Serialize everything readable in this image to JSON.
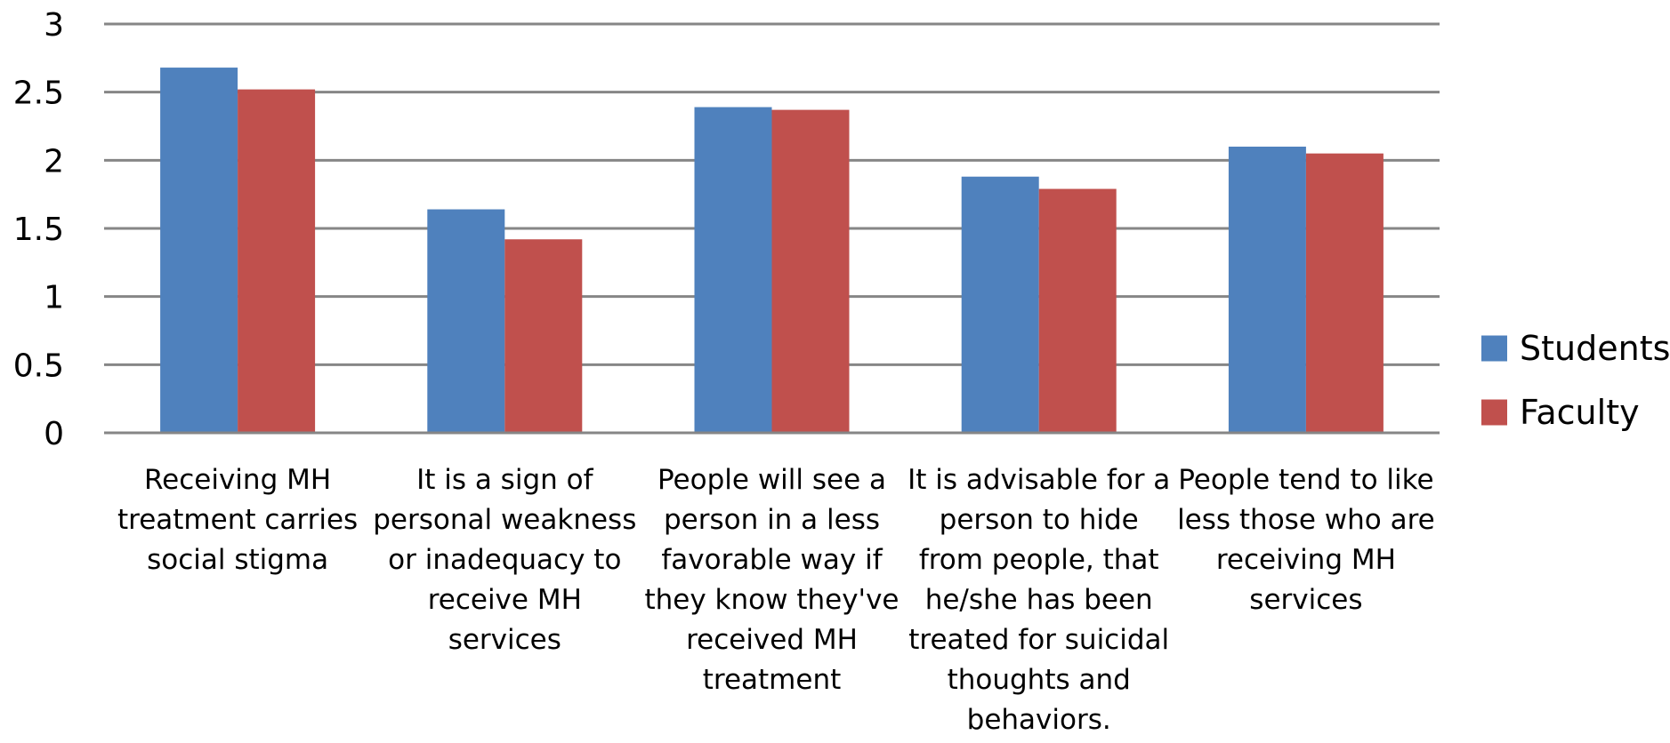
{
  "chart_data": {
    "type": "bar",
    "categories": [
      "Receiving MH treatment carries social stigma",
      "It is a sign of personal weakness or inadequacy to receive MH services",
      "People will see a person in a less favorable way if they know they've received MH treatment",
      "It is advisable for a person to hide from people, that he/she has been treated for suicidal thoughts and behaviors.",
      "People tend to like less those who are receiving MH services"
    ],
    "category_label_lines": [
      [
        "Receiving MH",
        "treatment carries",
        "social stigma"
      ],
      [
        "It is a sign of",
        "personal weakness",
        "or inadequacy to",
        "receive MH",
        "services"
      ],
      [
        "People will see a",
        "person in a less",
        "favorable way if",
        "they know they've",
        "received MH",
        "treatment"
      ],
      [
        "It is advisable for a",
        "person to hide",
        "from people, that",
        "he/she has been",
        "treated for suicidal",
        "thoughts and",
        "behaviors."
      ],
      [
        "People tend to like",
        "less those who are",
        "receiving MH",
        "services"
      ]
    ],
    "series": [
      {
        "name": "Students",
        "color": "#4F81BD",
        "values": [
          2.68,
          1.64,
          2.39,
          1.88,
          2.1
        ]
      },
      {
        "name": "Faculty",
        "color": "#C0504D",
        "values": [
          2.52,
          1.42,
          2.37,
          1.79,
          2.05
        ]
      }
    ],
    "y_ticks": [
      "0",
      "0.5",
      "1",
      "1.5",
      "2",
      "2.5",
      "3"
    ],
    "ylim": [
      0,
      3
    ],
    "grid": true,
    "legend_position": "right",
    "colors": {
      "grid": "#868686",
      "axis": "#868686"
    }
  }
}
